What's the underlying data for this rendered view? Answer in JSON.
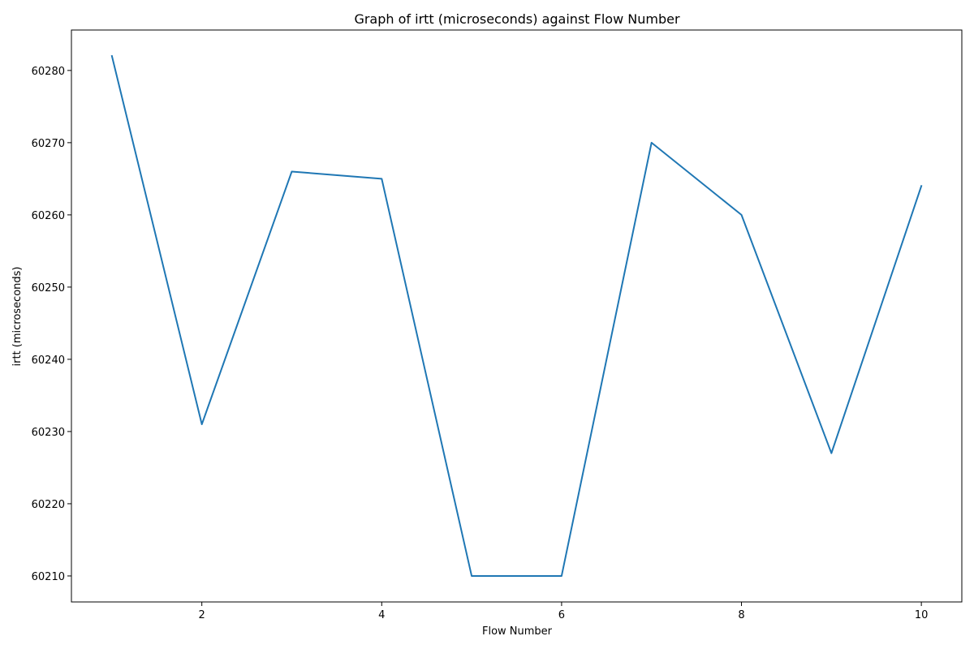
{
  "chart_data": {
    "type": "line",
    "title": "Graph of irtt (microseconds) against Flow Number",
    "xlabel": "Flow Number",
    "ylabel": "irtt (microseconds)",
    "x": [
      1,
      2,
      3,
      4,
      5,
      6,
      7,
      8,
      9,
      10
    ],
    "series": [
      {
        "values": [
          60282,
          60231,
          60266,
          60265,
          60210,
          60210,
          60270,
          60260,
          60227,
          60264
        ],
        "color": "#1f77b4"
      }
    ],
    "xlim": [
      0.55,
      10.45
    ],
    "ylim": [
      60206.4,
      60285.6
    ],
    "xticks": [
      2,
      4,
      6,
      8,
      10
    ],
    "yticks": [
      60210,
      60220,
      60230,
      60240,
      60250,
      60260,
      60270,
      60280
    ],
    "grid": false,
    "legend": "none"
  }
}
